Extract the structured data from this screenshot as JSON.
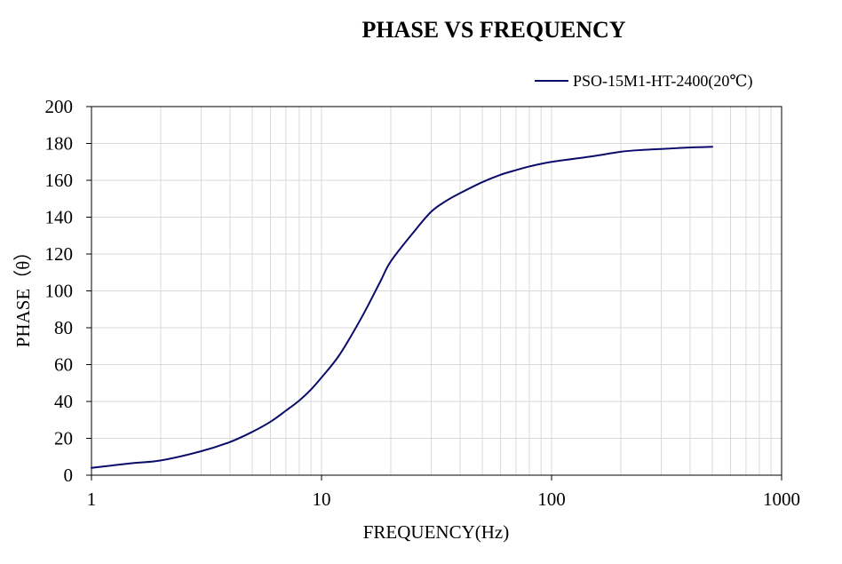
{
  "chart_data": {
    "type": "line",
    "title": "PHASE VS FREQUENCY",
    "xlabel": "FREQUENCY(Hz)",
    "ylabel": "PHASE（θ）",
    "xscale": "log",
    "xlim": [
      1,
      1000
    ],
    "ylim": [
      0,
      200
    ],
    "x_ticks": [
      1,
      10,
      100,
      1000
    ],
    "x_tick_labels": [
      "1",
      "10",
      "100",
      "1000"
    ],
    "y_ticks": [
      0,
      20,
      40,
      60,
      80,
      100,
      120,
      140,
      160,
      180,
      200
    ],
    "y_tick_labels": [
      "0",
      "20",
      "40",
      "60",
      "80",
      "100",
      "120",
      "140",
      "160",
      "180",
      "200"
    ],
    "grid": true,
    "legend_position": "top-right",
    "series": [
      {
        "name": "PSO-15M1-HT-2400(20℃)",
        "color": "#0b0b6b",
        "x": [
          1,
          1.5,
          2,
          3,
          4,
          5,
          6,
          7,
          8,
          9,
          10,
          12,
          15,
          18,
          20,
          25,
          30,
          35,
          40,
          50,
          60,
          70,
          80,
          100,
          150,
          200,
          250,
          300,
          400,
          500
        ],
        "y": [
          4,
          6.5,
          8,
          13,
          18,
          23.5,
          29,
          35,
          40.5,
          46.5,
          53,
          65.5,
          86,
          105,
          116,
          131.5,
          143,
          149,
          153,
          159,
          163,
          165.5,
          167.5,
          170,
          173,
          175.5,
          176.5,
          177,
          177.8,
          178.2
        ]
      }
    ]
  }
}
